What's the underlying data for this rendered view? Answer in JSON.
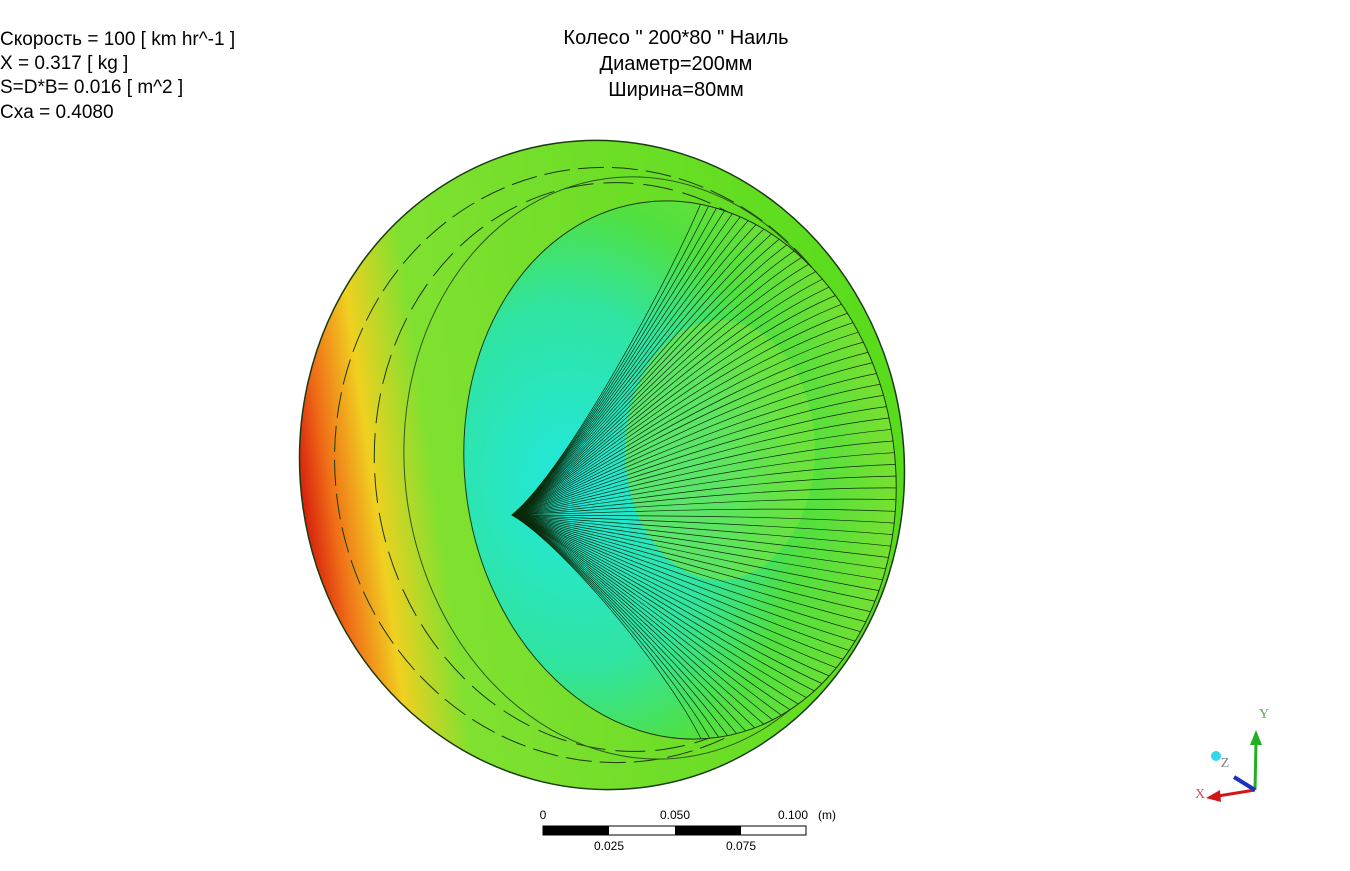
{
  "annotations": {
    "lines": [
      "Скорость = 100 [ km hr^-1 ]",
      "X = 0.317 [ kg ]",
      "S=D*B= 0.016 [ m^2 ]",
      "Cxa = 0.4080"
    ]
  },
  "title": {
    "lines": [
      "Колесо \" 200*80 \" Наиль",
      "Диаметр=200мм",
      "Ширина=80мм"
    ]
  },
  "scale_bar": {
    "labels_top": [
      "0",
      "0.050",
      "0.100",
      "(m)"
    ],
    "labels_bottom": [
      "0.025",
      "0.075"
    ]
  },
  "axes_triad": {
    "x": "X",
    "y": "Y",
    "z": "Z"
  }
}
